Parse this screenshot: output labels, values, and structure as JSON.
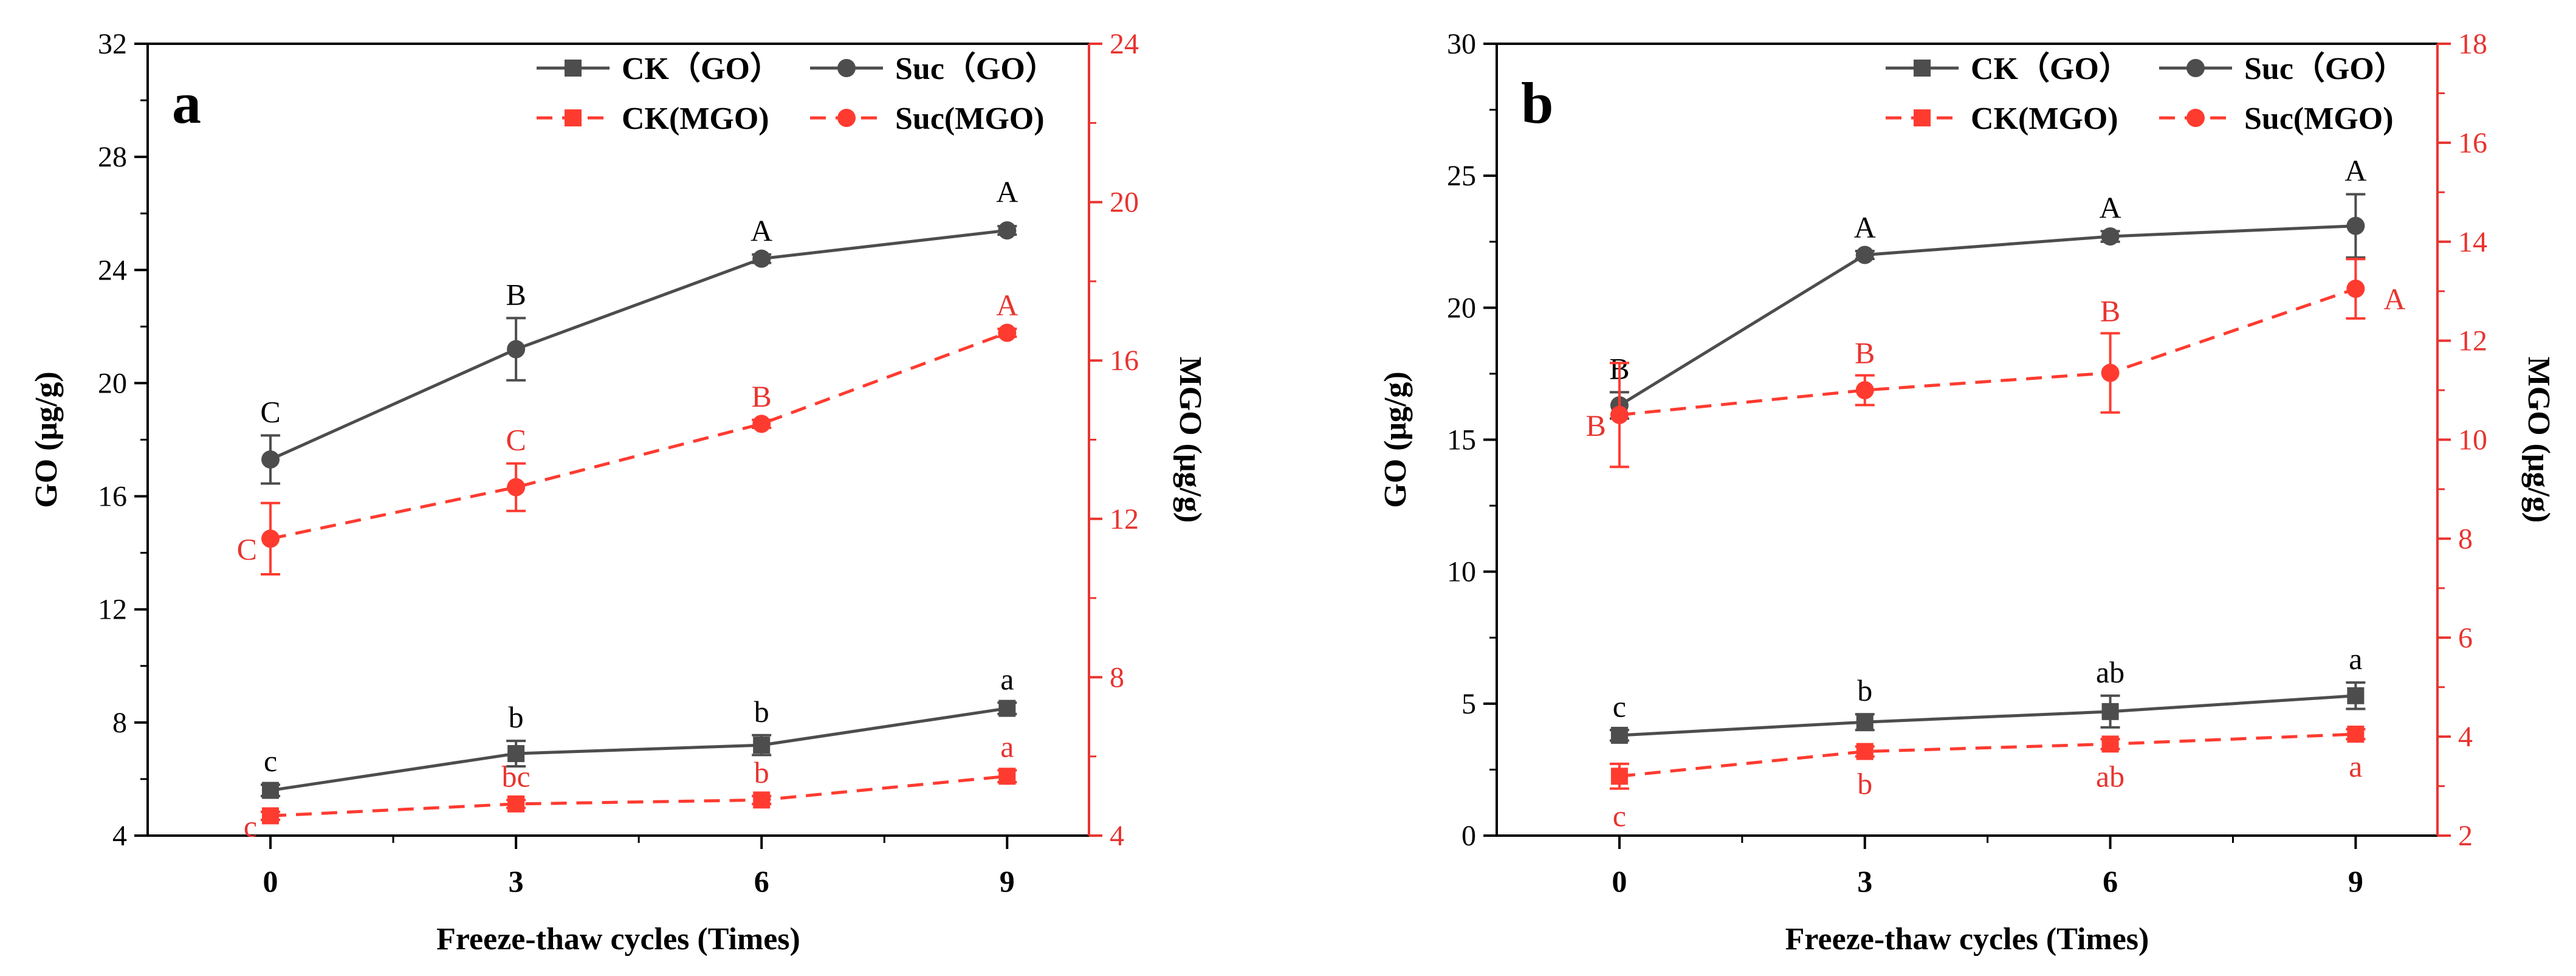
{
  "colors": {
    "black_series": "#4d4d4d",
    "red_series": "#ff3b30",
    "red_axis": "#e8342f"
  },
  "legend": {
    "ck_go": "CK（GO）",
    "suc_go": "Suc（GO）",
    "ck_mgo": "CK(MGO)",
    "suc_mgo": "Suc(MGO)"
  },
  "chart_data": [
    {
      "type": "line",
      "panel_label": "a",
      "xlabel": "Freeze-thaw cycles (Times)",
      "ylabel": "GO (μg/g)",
      "y2label": "MGO (μg/g)",
      "x": [
        0,
        3,
        6,
        9
      ],
      "xticks": [
        "0",
        "3",
        "6",
        "9"
      ],
      "xlim": [
        -1.5,
        10
      ],
      "ylim": [
        4,
        32
      ],
      "yticks": [
        "4",
        "8",
        "12",
        "16",
        "20",
        "24",
        "28",
        "32"
      ],
      "y2lim": [
        4,
        24
      ],
      "y2ticks": [
        "4",
        "8",
        "12",
        "16",
        "20",
        "24"
      ],
      "series": [
        {
          "name": "CK（GO）",
          "axis": "left",
          "color": "black",
          "marker": "square",
          "dash": false,
          "values": [
            5.6,
            6.9,
            7.2,
            8.5
          ],
          "err": [
            0.2,
            0.45,
            0.35,
            0.2
          ],
          "labels": [
            "c",
            "b",
            "b",
            "a"
          ],
          "label_pos": "above"
        },
        {
          "name": "Suc（GO）",
          "axis": "left",
          "color": "black",
          "marker": "circle",
          "dash": false,
          "values": [
            17.3,
            21.2,
            24.4,
            25.4
          ],
          "err": [
            0.85,
            1.1,
            0.15,
            0.15
          ],
          "labels": [
            "C",
            "B",
            "A",
            ""
          ],
          "label_pos": "above"
        },
        {
          "name": "CK(MGO)",
          "axis": "right",
          "color": "red",
          "marker": "square",
          "dash": true,
          "values": [
            4.5,
            4.8,
            4.9,
            5.5
          ],
          "err": [
            0.1,
            0.1,
            0.1,
            0.15
          ],
          "labels": [
            "c",
            "bc",
            "b",
            "a"
          ],
          "label_pos": "above"
        },
        {
          "name": "Suc(MGO)",
          "axis": "right",
          "color": "red",
          "marker": "circle",
          "dash": true,
          "values": [
            11.5,
            12.8,
            14.4,
            16.7
          ],
          "err": [
            0.9,
            0.6,
            0.1,
            0.1
          ],
          "labels": [
            "C",
            "C",
            "B",
            "A"
          ],
          "label_pos": "above"
        }
      ],
      "extra_labels": [
        {
          "text": "A",
          "x": 9,
          "y": 26.4,
          "color": "black"
        }
      ]
    },
    {
      "type": "line",
      "panel_label": "b",
      "xlabel": "Freeze-thaw cycles (Times)",
      "ylabel": "GO (μg/g)",
      "y2label": "MGO (μg/g)",
      "x": [
        0,
        3,
        6,
        9
      ],
      "xticks": [
        "0",
        "3",
        "6",
        "9"
      ],
      "xlim": [
        -1.5,
        10
      ],
      "ylim": [
        0,
        30
      ],
      "yticks": [
        "0",
        "5",
        "10",
        "15",
        "20",
        "25",
        "30"
      ],
      "y2lim": [
        2,
        18
      ],
      "y2ticks": [
        "2",
        "4",
        "6",
        "8",
        "10",
        "12",
        "14",
        "16",
        "18"
      ],
      "series": [
        {
          "name": "CK（GO）",
          "axis": "left",
          "color": "black",
          "marker": "square",
          "dash": false,
          "values": [
            3.8,
            4.3,
            4.7,
            5.3
          ],
          "err": [
            0.2,
            0.3,
            0.6,
            0.5
          ],
          "labels": [
            "c",
            "b",
            "ab",
            "a"
          ],
          "label_pos": "above"
        },
        {
          "name": "Suc（GO）",
          "axis": "left",
          "color": "black",
          "marker": "circle",
          "dash": false,
          "values": [
            16.3,
            22.0,
            22.7,
            23.1
          ],
          "err": [
            0.5,
            0.15,
            0.2,
            1.2
          ],
          "labels": [
            "B",
            "A",
            "A",
            "A"
          ],
          "label_pos": "above"
        },
        {
          "name": "CK(MGO)",
          "axis": "right",
          "color": "red",
          "marker": "square",
          "dash": true,
          "values": [
            3.2,
            3.7,
            3.85,
            4.05
          ],
          "err": [
            0.25,
            0.1,
            0.1,
            0.1
          ],
          "labels": [
            "c",
            "b",
            "ab",
            "a"
          ],
          "label_pos": "below"
        },
        {
          "name": "Suc(MGO)",
          "axis": "right",
          "color": "red",
          "marker": "circle",
          "dash": true,
          "values": [
            10.5,
            11.0,
            11.35,
            13.05
          ],
          "err": [
            1.05,
            0.3,
            0.8,
            0.6
          ],
          "labels": [
            "B",
            "B",
            "B",
            "A"
          ],
          "label_pos": "mixed"
        }
      ],
      "extra_labels": []
    }
  ]
}
